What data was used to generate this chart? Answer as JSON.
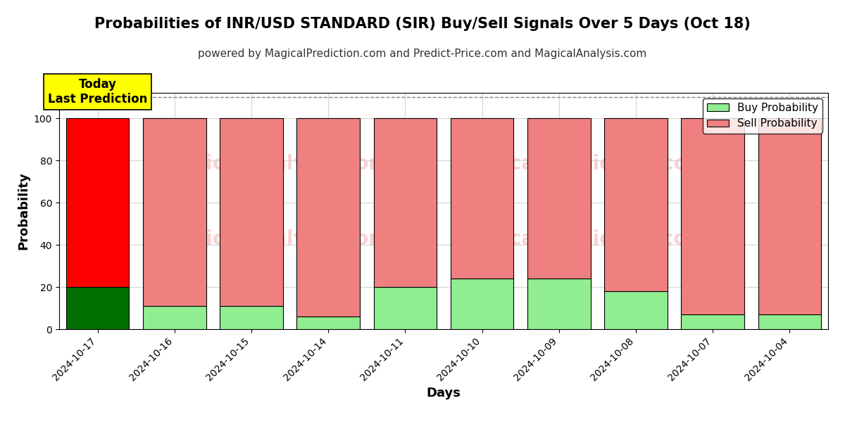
{
  "title": "Probabilities of INR/USD STANDARD (SIR) Buy/Sell Signals Over 5 Days (Oct 18)",
  "subtitle": "powered by MagicalPrediction.com and Predict-Price.com and MagicalAnalysis.com",
  "xlabel": "Days",
  "ylabel": "Probability",
  "categories": [
    "2024-10-17",
    "2024-10-16",
    "2024-10-15",
    "2024-10-14",
    "2024-10-11",
    "2024-10-10",
    "2024-10-09",
    "2024-10-08",
    "2024-10-07",
    "2024-10-04"
  ],
  "buy_values": [
    20,
    11,
    11,
    6,
    20,
    24,
    24,
    18,
    7,
    7
  ],
  "sell_values": [
    80,
    89,
    89,
    94,
    80,
    76,
    76,
    82,
    93,
    93
  ],
  "today_buy_color": "#007000",
  "today_sell_color": "#ff0000",
  "other_buy_color": "#90EE90",
  "other_sell_color": "#F08080",
  "today_index": 0,
  "bar_edge_color": "#000000",
  "bar_linewidth": 0.8,
  "ylim_max": 112,
  "yticks": [
    0,
    20,
    40,
    60,
    80,
    100
  ],
  "dashed_line_y": 110,
  "legend_buy_label": "Buy Probability",
  "legend_sell_label": "Sell Probability",
  "today_label_text": "Today\nLast Prediction",
  "today_label_bg": "#ffff00",
  "title_fontsize": 15,
  "subtitle_fontsize": 11,
  "axis_label_fontsize": 13,
  "tick_fontsize": 10,
  "legend_fontsize": 11,
  "bar_width": 0.82
}
